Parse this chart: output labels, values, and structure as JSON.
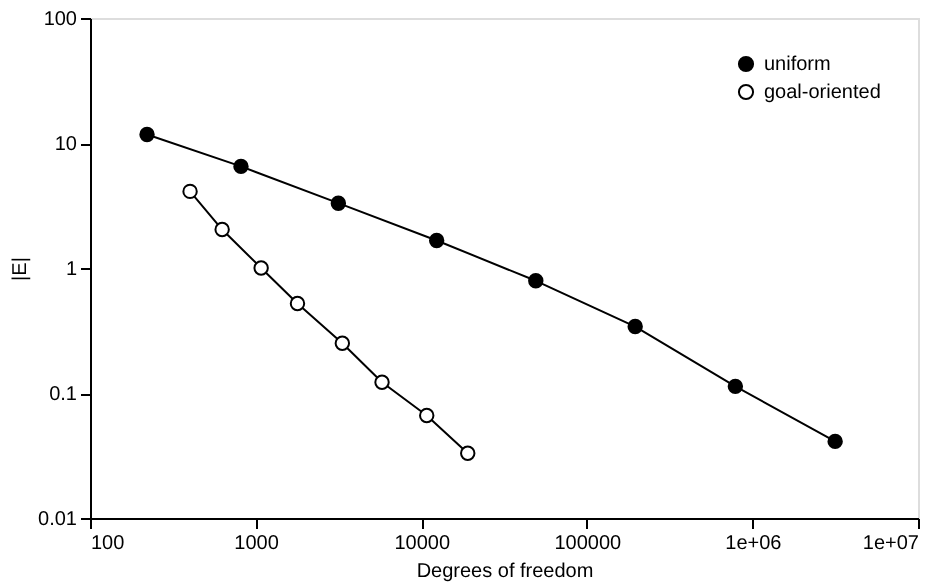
{
  "chart_data": {
    "type": "line",
    "xlabel": "Degrees of freedom",
    "ylabel": "|E|",
    "log": "xy",
    "xlim": [
      100,
      10000000
    ],
    "xticks": [
      100,
      1000,
      10000,
      100000,
      {
        "value": 1000000,
        "label": "1e+06"
      },
      {
        "value": 10000000,
        "label": "1e+07"
      }
    ],
    "ylim": [
      0.01,
      100
    ],
    "yticks": [
      0.01,
      0.1,
      1,
      10,
      100
    ],
    "marker": "circle",
    "grid": false,
    "legend": "top right",
    "series": [
      {
        "name": "uniform",
        "color": "#000000",
        "x": [
          221,
          816,
          3160,
          12400,
          49200,
          196000,
          789000,
          3160000
        ],
        "values": [
          11.7,
          6.5,
          3.3,
          1.66,
          0.79,
          0.34,
          0.113,
          0.041
        ]
      },
      {
        "name": "goal-oriented",
        "color": "#ffffff",
        "x": [
          402,
          628,
          1080,
          1790,
          3340,
          5800,
          10800,
          19100
        ],
        "values": [
          4.1,
          2.03,
          1.0,
          0.52,
          0.25,
          0.122,
          0.066,
          0.033
        ]
      }
    ]
  }
}
